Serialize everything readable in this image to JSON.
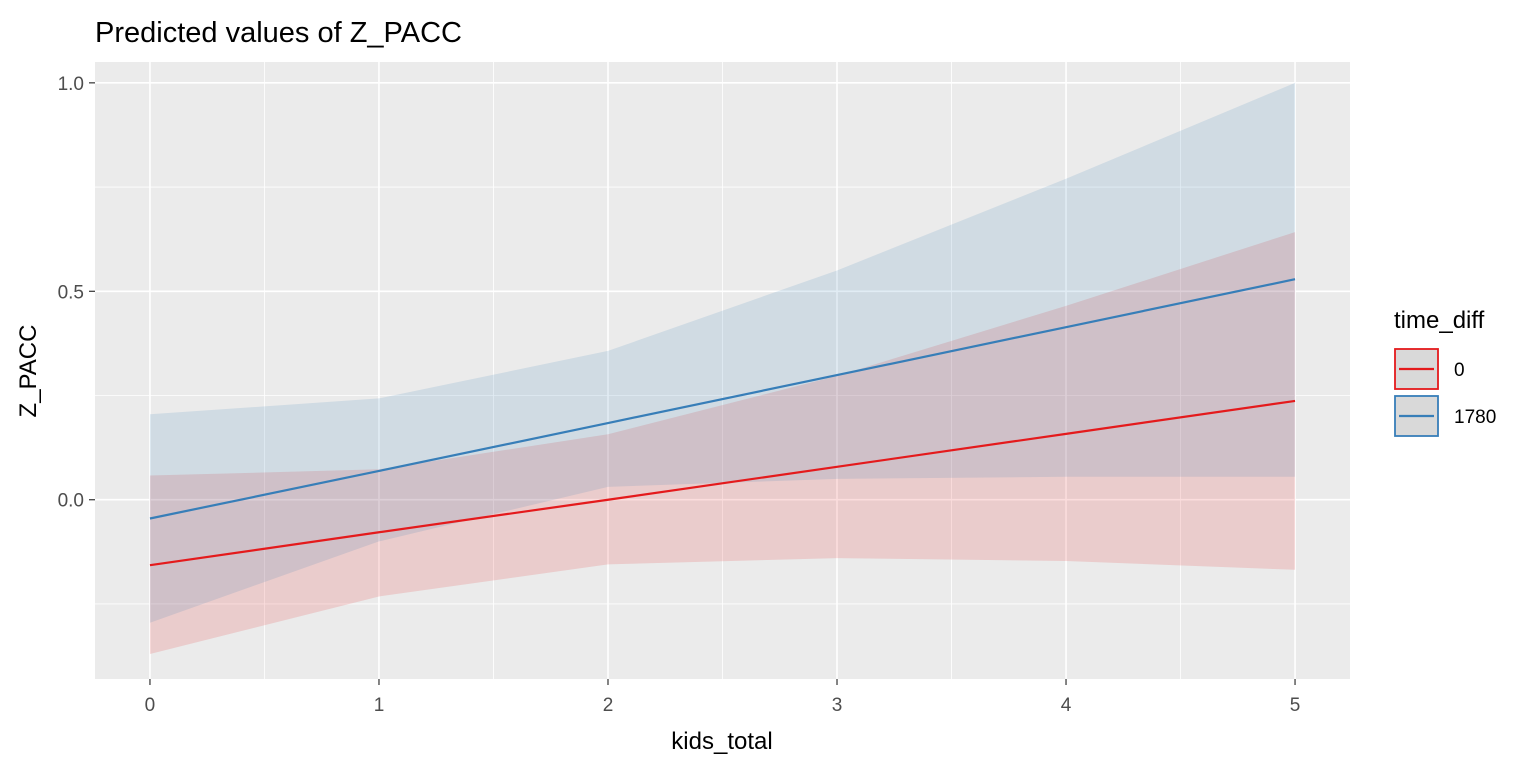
{
  "chart_data": {
    "type": "line",
    "title": "Predicted values of Z_PACC",
    "xlabel": "kids_total",
    "ylabel": "Z_PACC",
    "x": [
      0,
      1,
      2,
      3,
      4,
      5
    ],
    "xlim": [
      -0.24,
      5.24
    ],
    "ylim": [
      -0.43,
      1.05
    ],
    "xticks": [
      0,
      1,
      2,
      3,
      4,
      5
    ],
    "yticks": [
      0.0,
      0.5,
      1.0
    ],
    "ytick_labels": [
      "0.0",
      "0.5",
      "1.0"
    ],
    "grid": true,
    "legend": {
      "title": "time_diff",
      "position": "right"
    },
    "series": [
      {
        "name": "0",
        "color": "#e41a1c",
        "values": [
          -0.157,
          -0.078,
          0.0,
          0.079,
          0.158,
          0.237
        ],
        "lower": [
          -0.37,
          -0.232,
          -0.155,
          -0.14,
          -0.147,
          -0.168
        ],
        "upper": [
          0.058,
          0.073,
          0.157,
          0.297,
          0.465,
          0.642
        ]
      },
      {
        "name": "1780",
        "color": "#377eb8",
        "values": [
          -0.045,
          0.069,
          0.184,
          0.299,
          0.414,
          0.529
        ],
        "lower": [
          -0.295,
          -0.1,
          0.031,
          0.05,
          0.055,
          0.055
        ],
        "upper": [
          0.205,
          0.243,
          0.357,
          0.55,
          0.77,
          1.0
        ]
      }
    ]
  }
}
